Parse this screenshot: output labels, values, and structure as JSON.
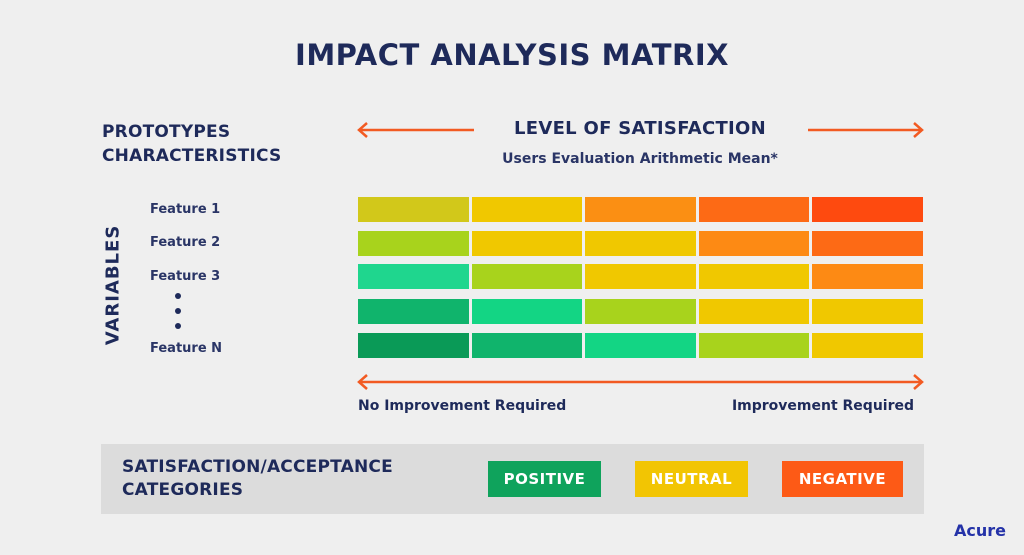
{
  "title": "IMPACT ANALYSIS MATRIX",
  "prototypes_label": [
    "PROTOTYPES",
    "CHARACTERISTICS"
  ],
  "satisfaction_title": "LEVEL OF SATISFACTION",
  "satisfaction_subtitle": "Users Evaluation Arithmetic Mean*",
  "variables_label": "VARIABLES",
  "features": [
    "Feature 1",
    "Feature 2",
    "Feature 3",
    "Feature N"
  ],
  "scale": {
    "left_label": "No Improvement Required",
    "right_label": "Improvement Required"
  },
  "matrix": {
    "rows": [
      {
        "name": "Feature 1",
        "colors": [
          "#d2c81a",
          "#f0c800",
          "#fb8f13",
          "#fd6a15",
          "#fe4a0f"
        ]
      },
      {
        "name": "Feature 2",
        "colors": [
          "#a8d31c",
          "#f0c800",
          "#f0c800",
          "#fd8a14",
          "#fd6a15"
        ]
      },
      {
        "name": "Feature 3",
        "colors": [
          "#1fd68e",
          "#a8d31c",
          "#f0c800",
          "#f0c800",
          "#fd8a14"
        ]
      },
      {
        "name": "...",
        "colors": [
          "#10b46c",
          "#13d584",
          "#a8d31c",
          "#f0c800",
          "#f0c800"
        ]
      },
      {
        "name": "Feature N",
        "colors": [
          "#0a9a57",
          "#10b46c",
          "#13d584",
          "#a8d31c",
          "#f0c800"
        ]
      }
    ]
  },
  "legend": {
    "title": [
      "SATISFACTION/ACCEPTANCE",
      "CATEGORIES"
    ],
    "items": [
      {
        "label": "POSITIVE",
        "color": "#0fa35c"
      },
      {
        "label": "NEUTRAL",
        "color": "#f2c503"
      },
      {
        "label": "NEGATIVE",
        "color": "#fd5a16"
      }
    ]
  },
  "colors": {
    "navy": "#1e2a5a",
    "arrow": "#f25a22",
    "brand": "#2432a8"
  },
  "brand": "Acure"
}
